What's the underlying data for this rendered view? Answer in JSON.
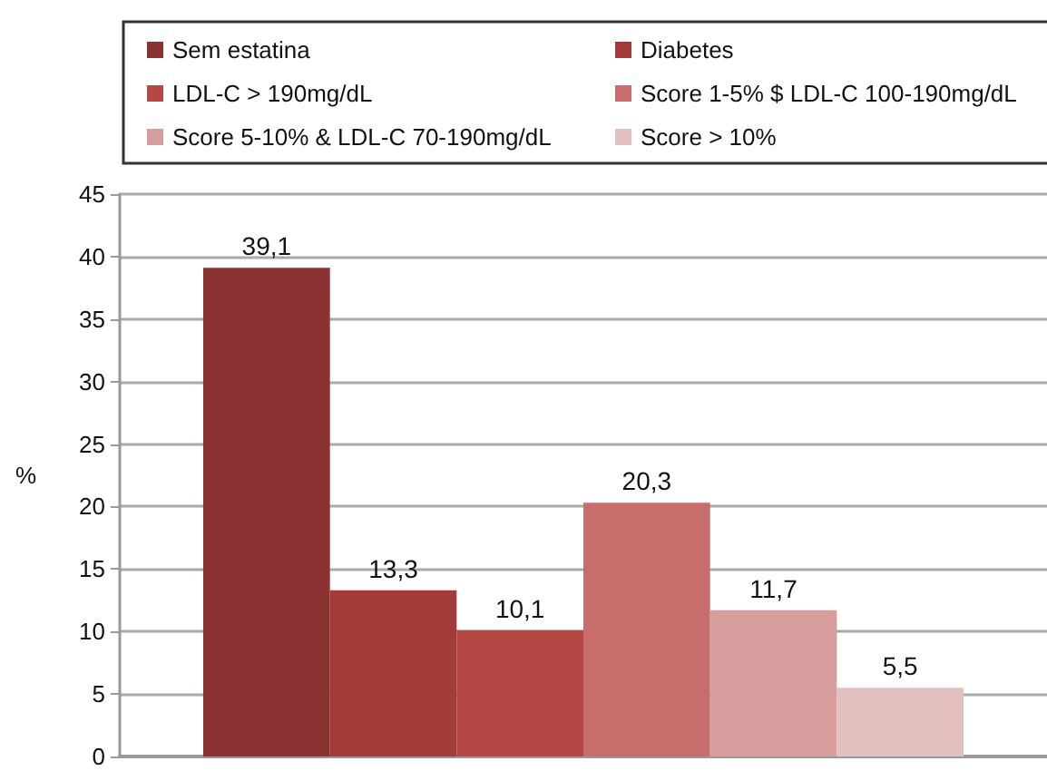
{
  "chart_data": {
    "type": "bar",
    "ylabel": "%",
    "categories": [
      null
    ],
    "series": [
      {
        "name": "Sem estatina",
        "color": "#8a3131",
        "values": [
          39.1
        ],
        "value_labels": [
          "39,1"
        ]
      },
      {
        "name": "Diabetes",
        "color": "#a33b3a",
        "values": [
          13.3
        ],
        "value_labels": [
          "13,3"
        ]
      },
      {
        "name": "LDL-C > 190mg/dL",
        "color": "#b54744",
        "values": [
          10.1
        ],
        "value_labels": [
          "10,1"
        ]
      },
      {
        "name": "Score 1-5% $ LDL-C 100-190mg/dL",
        "color": "#c76d6b",
        "values": [
          20.3
        ],
        "value_labels": [
          "20,3"
        ]
      },
      {
        "name": "Score 5-10% & LDL-C 70-190mg/dL",
        "color": "#d89e9e",
        "values": [
          11.7
        ],
        "value_labels": [
          "11,7"
        ]
      },
      {
        "name": "Score > 10%",
        "color": "#e3c1c1",
        "values": [
          5.5
        ],
        "value_labels": [
          "5,5"
        ]
      }
    ],
    "ylim": [
      0,
      45
    ],
    "yticks": [
      0,
      5,
      10,
      15,
      20,
      25,
      30,
      35,
      40,
      45
    ],
    "grid": "y",
    "legend": "top"
  }
}
